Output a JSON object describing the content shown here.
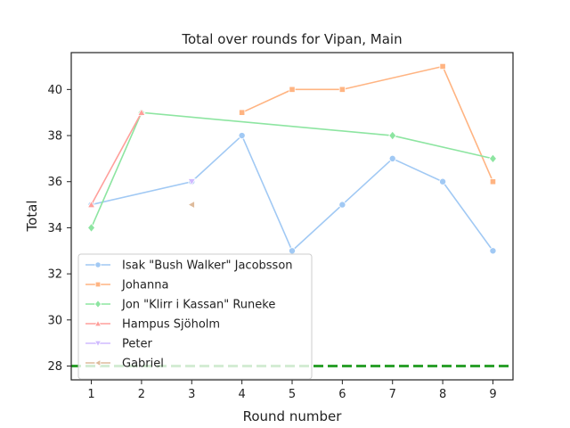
{
  "chart_data": {
    "type": "line",
    "title": "Total over rounds for Vipan, Main",
    "xlabel": "Round number",
    "ylabel": "Total",
    "xlim": [
      0.6,
      9.4
    ],
    "ylim": [
      27.4,
      41.6
    ],
    "x_ticks": [
      1,
      2,
      3,
      4,
      5,
      6,
      7,
      8,
      9
    ],
    "y_ticks": [
      28,
      30,
      32,
      34,
      36,
      38,
      40
    ],
    "grid": false,
    "legend_position": "lower-left",
    "reference_line": {
      "y": 28,
      "style": "dashed",
      "color": "#2ca02c"
    },
    "series": [
      {
        "name": "Isak \"Bush Walker\" Jacobsson",
        "color": "#a1c9f4",
        "marker": "circle",
        "points": [
          [
            1,
            35
          ],
          [
            3,
            36
          ],
          [
            4,
            38
          ],
          [
            5,
            33
          ],
          [
            6,
            35
          ],
          [
            7,
            37
          ],
          [
            8,
            36
          ],
          [
            9,
            33
          ]
        ],
        "segments": [
          [
            0,
            1,
            2,
            3,
            4,
            5,
            6,
            7
          ]
        ]
      },
      {
        "name": "Johanna",
        "color": "#ffb482",
        "marker": "square",
        "points": [
          [
            4,
            39
          ],
          [
            5,
            40
          ],
          [
            6,
            40
          ],
          [
            8,
            41
          ],
          [
            9,
            36
          ]
        ],
        "segments": [
          [
            0,
            1,
            2,
            3,
            4
          ]
        ]
      },
      {
        "name": "Jon \"Klirr i Kassan\" Runeke",
        "color": "#8de5a1",
        "marker": "diamond",
        "points": [
          [
            1,
            34
          ],
          [
            2,
            39
          ],
          [
            7,
            38
          ],
          [
            9,
            37
          ]
        ],
        "segments": [
          [
            0,
            1,
            2,
            3
          ]
        ]
      },
      {
        "name": "Hampus Sjöholm",
        "color": "#ff9f9b",
        "marker": "triangle-up",
        "points": [
          [
            1,
            35
          ],
          [
            2,
            39
          ]
        ],
        "segments": [
          [
            0,
            1
          ]
        ]
      },
      {
        "name": "Peter",
        "color": "#d0bbff",
        "marker": "triangle-down",
        "points": [
          [
            3,
            36
          ]
        ],
        "segments": []
      },
      {
        "name": "Gabriel",
        "color": "#debb9b",
        "marker": "triangle-left",
        "points": [
          [
            3,
            35
          ]
        ],
        "segments": []
      }
    ]
  }
}
